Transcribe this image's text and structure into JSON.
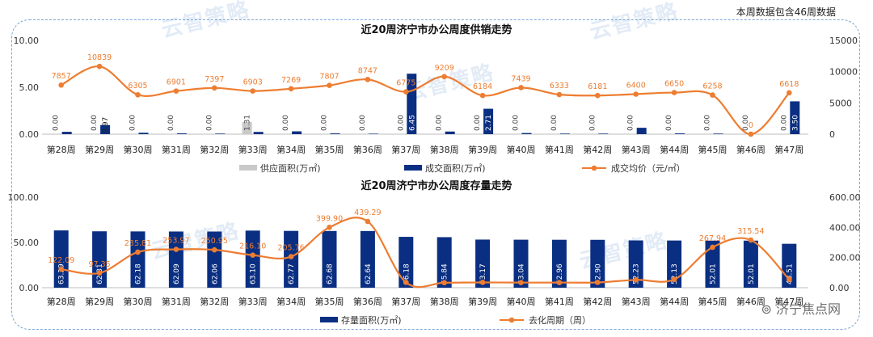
{
  "note": "本周数据包含46周数据",
  "watermark": "云智策略",
  "footer_brand": "济宁焦点网",
  "colors": {
    "supply": "#c9c9c9",
    "deal": "#0a2f82",
    "line": "#ed7d31",
    "frame": "#7aa6d6"
  },
  "chart_data": [
    {
      "type": "bar+line",
      "title": "近20周济宁市办公周度供销走势",
      "categories": [
        "第28周",
        "第29周",
        "第30周",
        "第31周",
        "第32周",
        "第33周",
        "第34周",
        "第35周",
        "第36周",
        "第37周",
        "第38周",
        "第39周",
        "第40周",
        "第41周",
        "第42周",
        "第43周",
        "第44周",
        "第45周",
        "第46周",
        "第47周"
      ],
      "left_axis": {
        "ylim": [
          0,
          10
        ],
        "ticks": [
          "0.00",
          "5.00",
          "10.00"
        ]
      },
      "right_axis": {
        "ylim": [
          0,
          15000
        ],
        "ticks": [
          "0",
          "5000",
          "10000",
          "15000"
        ]
      },
      "grid": false,
      "legend_position": "bottom",
      "series": [
        {
          "name": "供应面积(万㎡)",
          "kind": "bar",
          "axis": "left",
          "values": [
            0,
            0,
            0,
            0,
            0,
            1.31,
            0,
            0,
            0,
            0,
            0,
            0,
            0,
            0,
            0,
            0,
            0,
            0,
            0,
            0
          ],
          "labels": [
            "0.00",
            "0.00",
            "0.00",
            "0.00",
            "0.00",
            "1.31",
            "0.00",
            "0.00",
            "0.00",
            "0.00",
            "0.00",
            "0.00",
            "0.00",
            "0.00",
            "0.00",
            "0.00",
            "0.00",
            "0.00",
            "0.00",
            "0.00"
          ]
        },
        {
          "name": "成交面积(万㎡)",
          "kind": "bar",
          "axis": "left",
          "values": [
            0.25,
            0.97,
            0.15,
            0.08,
            0.06,
            0.24,
            0.3,
            0.08,
            0.05,
            6.45,
            0.28,
            2.71,
            0.12,
            0.06,
            0.06,
            0.68,
            0.08,
            0.06,
            0.0,
            3.5
          ],
          "labels": [
            "",
            "0.97",
            "",
            "",
            "",
            "",
            "",
            "",
            "",
            "6.45",
            "",
            "2.71",
            "",
            "",
            "",
            "",
            "",
            "",
            "",
            "3.50"
          ]
        },
        {
          "name": "成交均价（元/㎡）",
          "kind": "line",
          "axis": "right",
          "values": [
            7857,
            10839,
            6305,
            6901,
            7397,
            6903,
            7269,
            7807,
            8747,
            6775,
            9209,
            6184,
            7439,
            6333,
            6181,
            6400,
            6650,
            6258,
            0,
            6618
          ],
          "labels": [
            "7857",
            "10839",
            "6305",
            "6901",
            "7397",
            "6903",
            "7269",
            "7807",
            "8747",
            "6775",
            "9209",
            "6184",
            "7439",
            "6333",
            "6181",
            "6400",
            "6650",
            "6258",
            "0",
            "6618"
          ]
        }
      ]
    },
    {
      "type": "bar+line",
      "title": "近20周济宁市办公周度存量走势",
      "categories": [
        "第28周",
        "第29周",
        "第30周",
        "第31周",
        "第32周",
        "第33周",
        "第34周",
        "第35周",
        "第36周",
        "第37周",
        "第38周",
        "第39周",
        "第40周",
        "第41周",
        "第42周",
        "第43周",
        "第44周",
        "第45周",
        "第46周",
        "第47周"
      ],
      "left_axis": {
        "ylim": [
          0,
          100
        ],
        "ticks": [
          "0.00",
          "50.00",
          "100.00"
        ]
      },
      "right_axis": {
        "ylim": [
          0,
          600
        ],
        "ticks": [
          "0.00",
          "200.00",
          "400.00",
          "600.00"
        ]
      },
      "grid": false,
      "legend_position": "bottom",
      "series": [
        {
          "name": "存量面积(万㎡)",
          "kind": "bar",
          "axis": "left",
          "values": [
            63.29,
            62.31,
            62.18,
            62.09,
            62.06,
            63.1,
            62.77,
            62.68,
            62.64,
            56.18,
            55.84,
            53.17,
            53.04,
            52.96,
            52.9,
            52.23,
            52.13,
            52.01,
            52.01,
            48.51
          ],
          "labels": [
            "63.29",
            "62.31",
            "62.18",
            "62.09",
            "62.06",
            "63.10",
            "62.77",
            "62.68",
            "62.64",
            "56.18",
            "55.84",
            "53.17",
            "53.04",
            "52.96",
            "52.90",
            "52.23",
            "52.13",
            "52.01",
            "52.01",
            "48.51"
          ]
        },
        {
          "name": "去化周期（周）",
          "kind": "line",
          "axis": "right",
          "values": [
            122.09,
            97.35,
            235.81,
            253.97,
            250.95,
            216.1,
            205.76,
            399.9,
            439.29,
            35.0,
            33.0,
            35.0,
            34.0,
            34.0,
            35.0,
            52.0,
            55.0,
            267.94,
            315.54,
            55.0
          ],
          "labels": [
            "122.09",
            "97.35",
            "235.81",
            "253.97",
            "250.95",
            "216.10",
            "205.76",
            "399.90",
            "439.29",
            "",
            "",
            "",
            "",
            "",
            "",
            "",
            "",
            "267.94",
            "315.54",
            ""
          ]
        }
      ]
    }
  ]
}
